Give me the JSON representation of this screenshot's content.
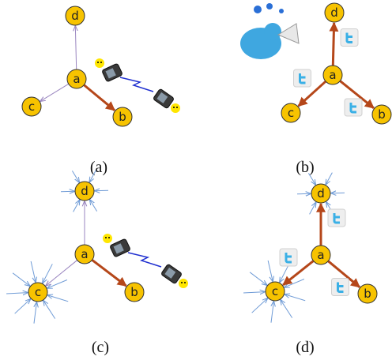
{
  "panels": [
    {
      "caption": "(a)",
      "nodes": [
        "a",
        "b",
        "c",
        "d"
      ]
    },
    {
      "caption": "(b)",
      "nodes": [
        "a",
        "b",
        "c",
        "d"
      ]
    },
    {
      "caption": "(c)",
      "nodes": [
        "a",
        "b",
        "c",
        "d"
      ]
    },
    {
      "caption": "(d)",
      "nodes": [
        "a",
        "b",
        "c",
        "d"
      ]
    }
  ]
}
